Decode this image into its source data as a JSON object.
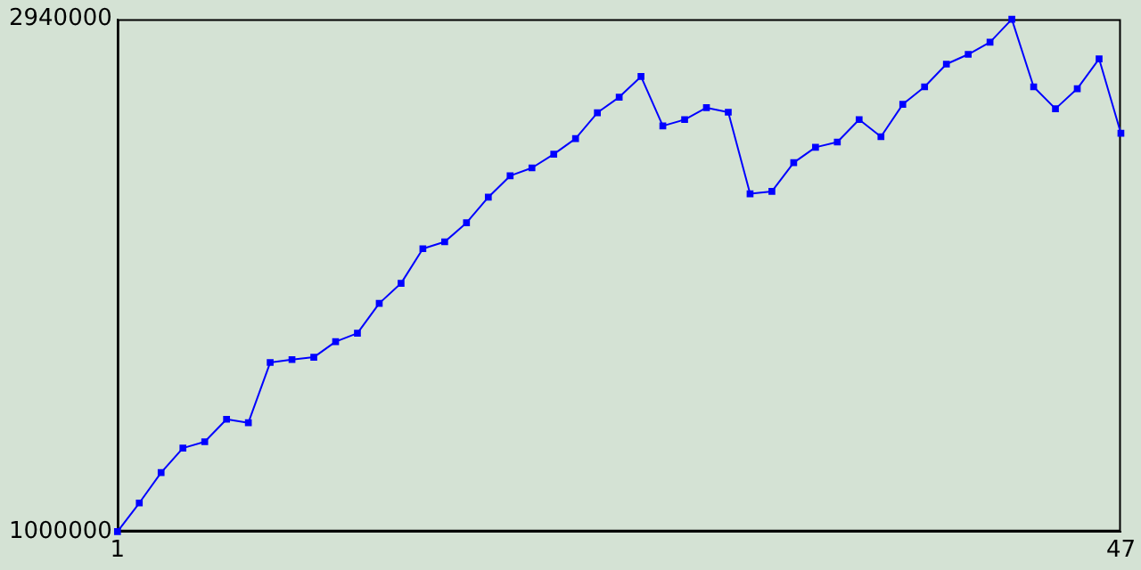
{
  "chart_data": {
    "type": "line",
    "x": [
      1,
      2,
      3,
      4,
      5,
      6,
      7,
      8,
      9,
      10,
      11,
      12,
      13,
      14,
      15,
      16,
      17,
      18,
      19,
      20,
      21,
      22,
      23,
      24,
      25,
      26,
      27,
      28,
      29,
      30,
      31,
      32,
      33,
      34,
      35,
      36,
      37,
      38,
      39,
      40,
      41,
      42,
      43,
      44,
      45,
      46,
      47
    ],
    "series": [
      {
        "color": "#0000ff",
        "values": [
          1000000,
          1108000,
          1223000,
          1316000,
          1340000,
          1425000,
          1412000,
          1640000,
          1651000,
          1660000,
          1719000,
          1751000,
          1864000,
          1940000,
          2071000,
          2097000,
          2169000,
          2266000,
          2347000,
          2377000,
          2429000,
          2488000,
          2586000,
          2645000,
          2723000,
          2536000,
          2560000,
          2605000,
          2588000,
          2279000,
          2288000,
          2397000,
          2455000,
          2475000,
          2560000,
          2495000,
          2618000,
          2684000,
          2770000,
          2807000,
          2853000,
          2940000,
          2684000,
          2601000,
          2677000,
          2790000,
          2508000
        ]
      }
    ],
    "xlim": [
      1,
      47
    ],
    "xticks": [
      1,
      47
    ],
    "ylim": [
      1000000,
      2940000
    ],
    "yticks": [
      1000000,
      2940000
    ],
    "grid": false,
    "legend": false,
    "marker": "square",
    "line_style": "solid"
  }
}
